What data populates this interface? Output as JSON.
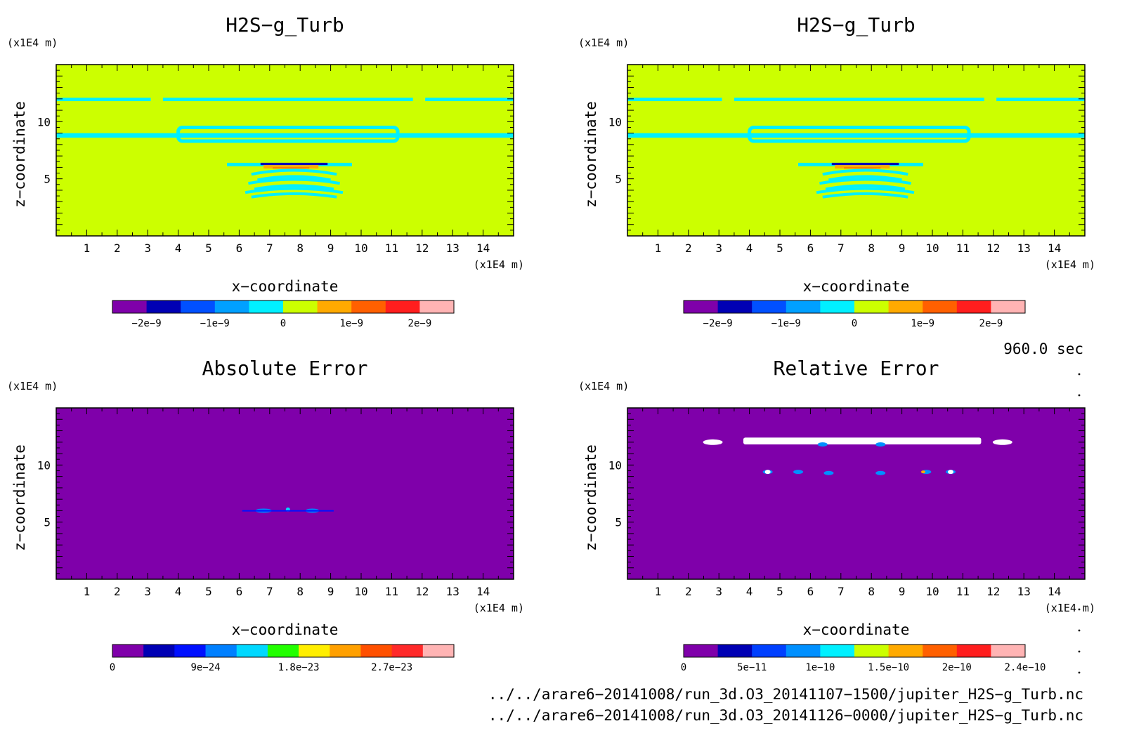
{
  "colors": {
    "bg_green": "#ccff00",
    "cyan": "#00f0ff",
    "purple": "#7f00aa",
    "white": "#ffffff"
  },
  "chart_data": [
    {
      "type": "heatmap",
      "title": "H2S−g_Turb",
      "xlabel": "x−coordinate",
      "ylabel": "z−coordinate",
      "x_unit": "(x1E4 m)",
      "y_unit": "(x1E4 m)",
      "xlim": [
        0,
        15
      ],
      "ylim": [
        0,
        15
      ],
      "x_ticks": [
        "1",
        "2",
        "3",
        "4",
        "5",
        "6",
        "7",
        "8",
        "9",
        "10",
        "11",
        "12",
        "13",
        "14"
      ],
      "y_ticks": [
        "5",
        "10"
      ],
      "colorbar": {
        "colors": [
          "#7f00aa",
          "#0000b4",
          "#0050ff",
          "#00a0ff",
          "#00f0ff",
          "#ccff00",
          "#ffaa00",
          "#ff6000",
          "#ff1e1e",
          "#ffb4b4"
        ],
        "labels": [
          "−2e−9",
          "−1e−9",
          "0",
          "1e−9",
          "2e−9"
        ],
        "label_pos": [
          1,
          3,
          5,
          7,
          9
        ]
      }
    },
    {
      "type": "heatmap",
      "title": "H2S−g_Turb",
      "xlabel": "x−coordinate",
      "ylabel": "z−coordinate",
      "x_unit": "(x1E4 m)",
      "y_unit": "(x1E4 m)",
      "xlim": [
        0,
        15
      ],
      "ylim": [
        0,
        15
      ],
      "x_ticks": [
        "1",
        "2",
        "3",
        "4",
        "5",
        "6",
        "7",
        "8",
        "9",
        "10",
        "11",
        "12",
        "13",
        "14"
      ],
      "y_ticks": [
        "5",
        "10"
      ],
      "colorbar": {
        "colors": [
          "#7f00aa",
          "#0000b4",
          "#0050ff",
          "#00a0ff",
          "#00f0ff",
          "#ccff00",
          "#ffaa00",
          "#ff6000",
          "#ff1e1e",
          "#ffb4b4"
        ],
        "labels": [
          "−2e−9",
          "−1e−9",
          "0",
          "1e−9",
          "2e−9"
        ],
        "label_pos": [
          1,
          3,
          5,
          7,
          9
        ]
      }
    },
    {
      "type": "heatmap",
      "title": "Absolute Error",
      "xlabel": "x−coordinate",
      "ylabel": "z−coordinate",
      "x_unit": "(x1E4 m)",
      "y_unit": "(x1E4 m)",
      "xlim": [
        0,
        15
      ],
      "ylim": [
        0,
        15
      ],
      "x_ticks": [
        "1",
        "2",
        "3",
        "4",
        "5",
        "6",
        "7",
        "8",
        "9",
        "10",
        "11",
        "12",
        "13",
        "14"
      ],
      "y_ticks": [
        "5",
        "10"
      ],
      "colorbar": {
        "colors": [
          "#7f00aa",
          "#0000b4",
          "#0010ff",
          "#0080ff",
          "#00d8ff",
          "#22ff00",
          "#ffee00",
          "#ffa000",
          "#ff5000",
          "#ff2a2a",
          "#ffb4b4"
        ],
        "labels": [
          "0",
          "9e−24",
          "1.8e−23",
          "2.7e−23"
        ],
        "label_pos": [
          0,
          3,
          6,
          9
        ]
      }
    },
    {
      "type": "heatmap",
      "title": "Relative Error",
      "xlabel": "x−coordinate",
      "ylabel": "z−coordinate",
      "x_unit": "(x1E4 m)",
      "y_unit": "(x1E4 m)",
      "xlim": [
        0,
        15
      ],
      "ylim": [
        0,
        15
      ],
      "x_ticks": [
        "1",
        "2",
        "3",
        "4",
        "5",
        "6",
        "7",
        "8",
        "9",
        "10",
        "11",
        "12",
        "13",
        "14"
      ],
      "y_ticks": [
        "5",
        "10"
      ],
      "colorbar": {
        "colors": [
          "#7f00aa",
          "#0000b4",
          "#0040ff",
          "#0090ff",
          "#00f0ff",
          "#ccff00",
          "#ffaa00",
          "#ff6000",
          "#ff1e1e",
          "#ffb4b4"
        ],
        "labels": [
          "0",
          "5e−11",
          "1e−10",
          "1.5e−10",
          "2e−10",
          "2.4e−10"
        ],
        "label_pos": [
          0,
          2,
          4,
          6,
          8,
          10
        ]
      }
    }
  ],
  "time_label": "960.0 sec",
  "files": [
    "../../arare6−20141008/run_3d.O3_20141107−1500/jupiter_H2S−g_Turb.nc",
    "../../arare6−20141008/run_3d.O3_20141126−0000/jupiter_H2S−g_Turb.nc"
  ]
}
